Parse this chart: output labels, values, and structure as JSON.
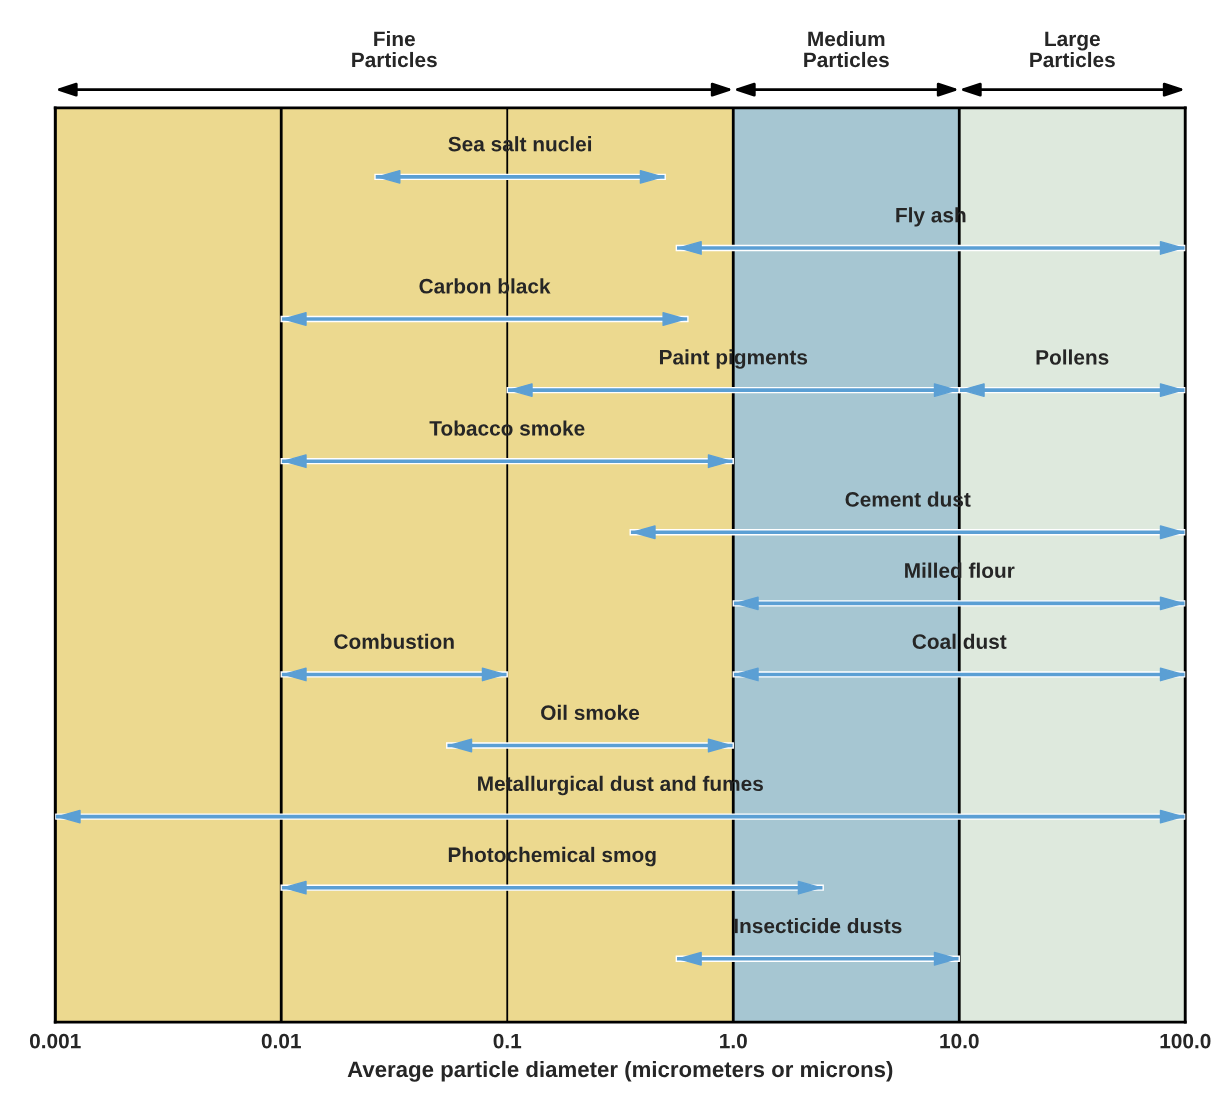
{
  "chart_data": {
    "type": "bar",
    "orientation": "horizontal",
    "log": "x",
    "xlabel": "Average particle diameter (micrometers or microns)",
    "categories": [
      "Sea salt nuclei",
      "Fly ash",
      "Carbon black",
      "Paint pigments",
      "Tobacco smoke",
      "Cement dust",
      "Milled flour",
      "Combustion",
      "Oil smoke",
      "Metallurgical dust and fumes",
      "Photochemical smog",
      "Insecticide dusts"
    ],
    "series": [
      {
        "color": "#5b9fd4",
        "base": [
          0.026,
          0.56,
          0.01,
          0.1,
          0.01,
          0.35,
          1,
          0.01,
          0.054,
          0.001,
          0.01,
          0.56
        ],
        "values": [
          0.474,
          99.44,
          0.62,
          9.9,
          0.99,
          99.65,
          99,
          0.09,
          0.946,
          99.999,
          2.49,
          9.44
        ]
      },
      {
        "color": "#5b9fd4",
        "base": [
          null,
          null,
          null,
          10,
          null,
          null,
          null,
          1,
          null,
          null,
          null,
          null
        ],
        "values": [
          null,
          null,
          null,
          90,
          null,
          null,
          null,
          99,
          null,
          null,
          null,
          null
        ]
      }
    ],
    "annotations": [
      {
        "text": "Pollens",
        "x": 31.6,
        "y": "Paint pigments"
      },
      {
        "text": "Coal dust",
        "x": 10,
        "y": "Combustion"
      }
    ],
    "bands": [
      {
        "axis": "x",
        "from": 0.001,
        "to": 1,
        "label": "Fine\nParticles",
        "color": "#ecd98f"
      },
      {
        "axis": "x",
        "from": 1,
        "to": 10,
        "label": "Medium\nParticles",
        "color": "#a6c6d2"
      },
      {
        "axis": "x",
        "from": 10,
        "to": 100,
        "label": "Large\nParticles",
        "color": "#dee9dd"
      }
    ],
    "xlim": [
      0.001,
      100
    ],
    "xticks": [
      0.001,
      0.01,
      0.1,
      {
        "value": 1,
        "label": "1.0"
      },
      {
        "value": 10,
        "label": "10.0"
      },
      {
        "value": 100,
        "label": "100.0"
      }
    ],
    "tick_labels": "x",
    "grid": "x",
    "legend": false
  }
}
